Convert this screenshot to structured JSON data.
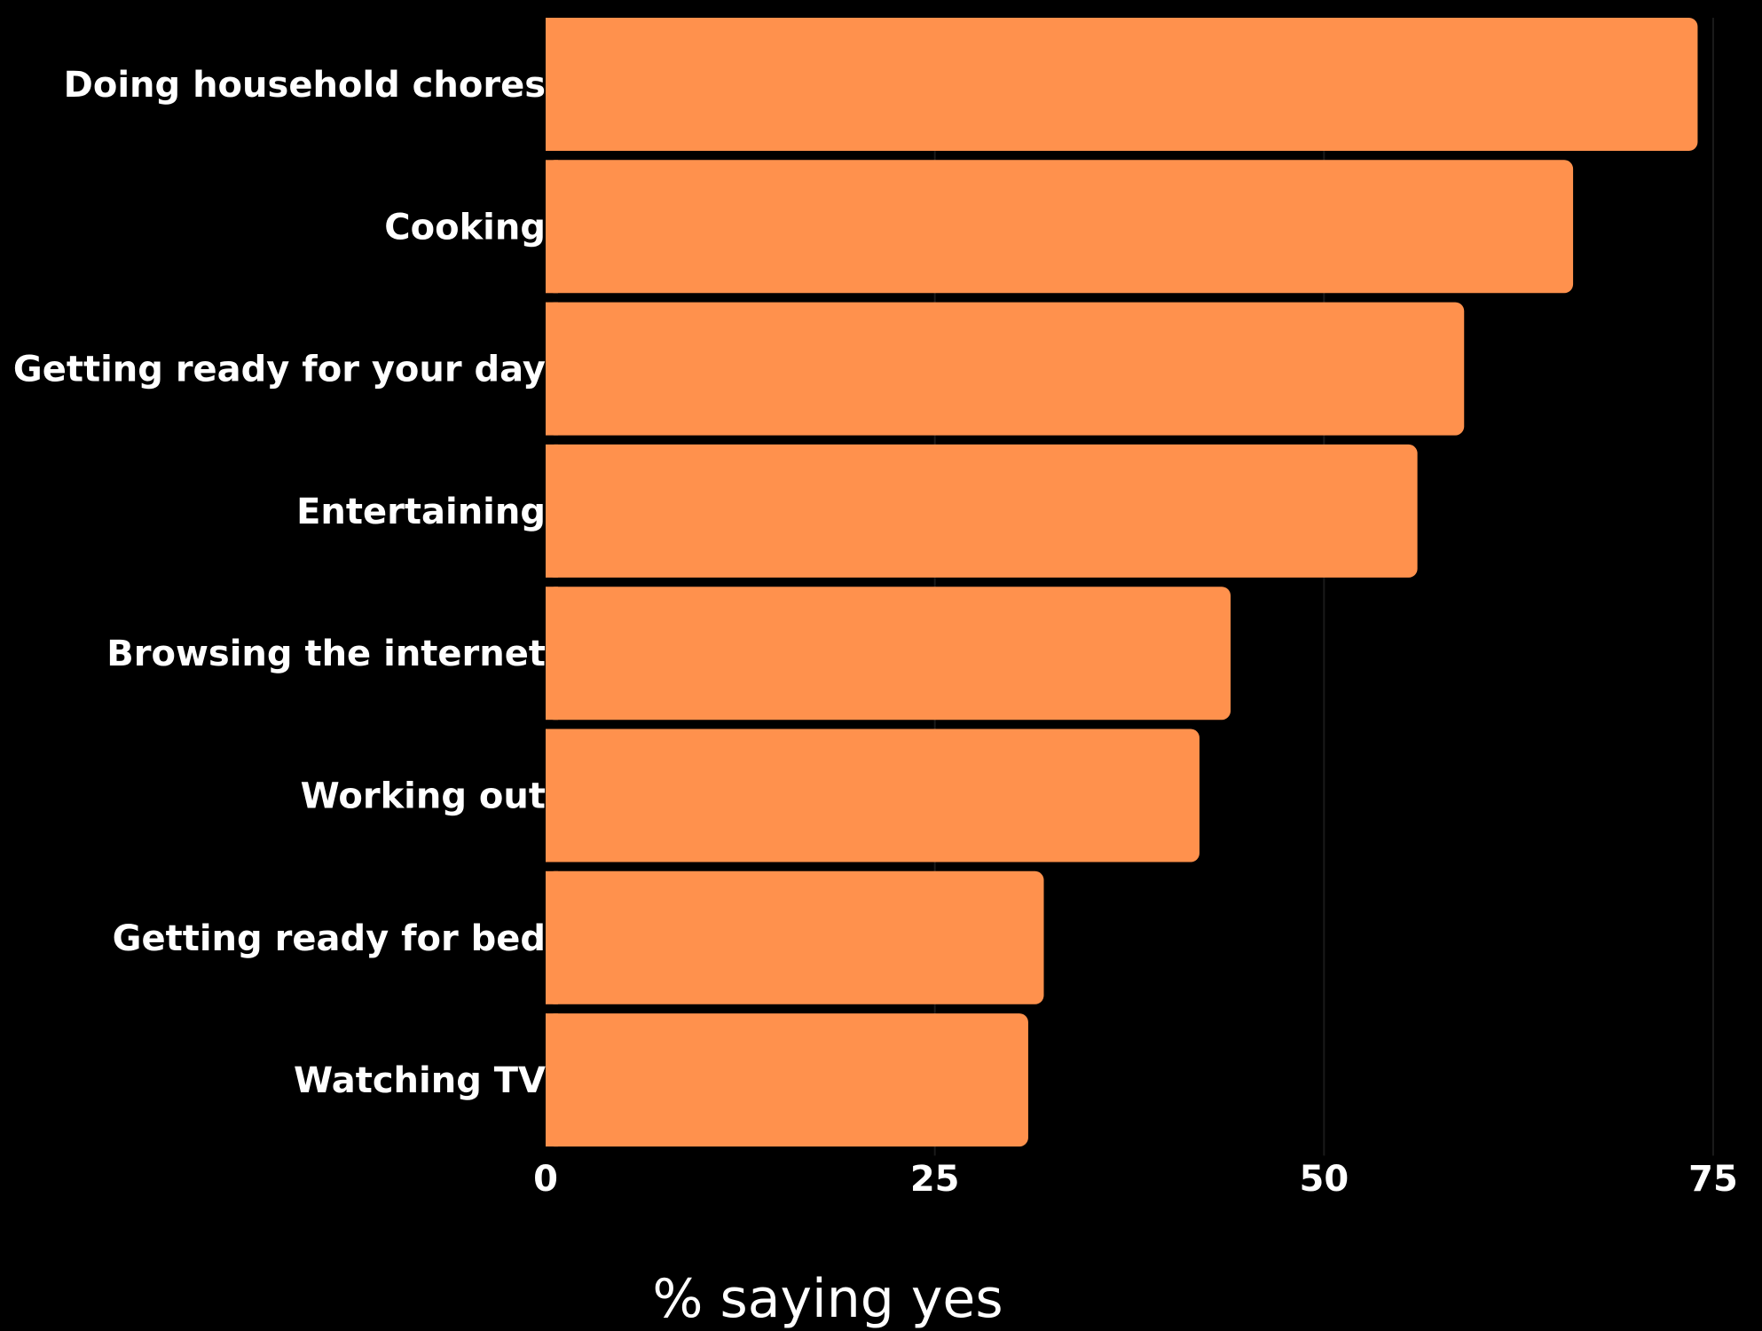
{
  "chart_data": {
    "type": "bar",
    "orientation": "horizontal",
    "categories": [
      "Doing household chores",
      "Cooking",
      "Getting ready for your day",
      "Entertaining",
      "Browsing the internet",
      "Working out",
      "Getting ready for bed",
      "Watching TV"
    ],
    "values": [
      74,
      66,
      59,
      56,
      44,
      42,
      32,
      31
    ],
    "title": "",
    "xlabel": "% saying yes",
    "ylabel": "",
    "xlim": [
      0,
      75
    ],
    "xticks": [
      0,
      25,
      50,
      75
    ],
    "grid": true,
    "legend": "none",
    "colors": {
      "bar": "#FF914D",
      "background": "#000000",
      "text": "#FFFFFF",
      "grid": "#1A1A1A"
    }
  }
}
